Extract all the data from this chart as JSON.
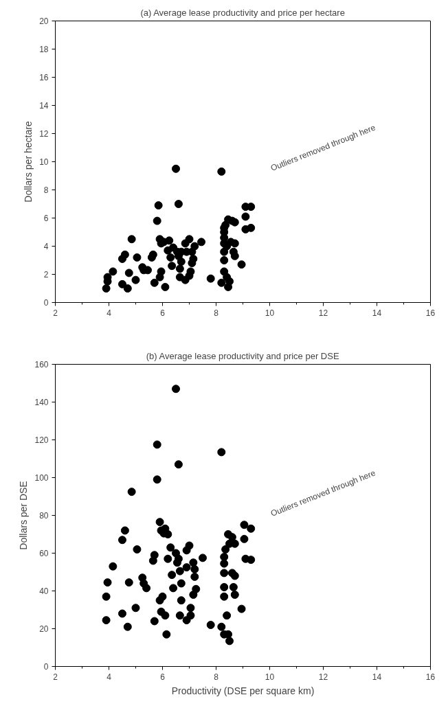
{
  "chart_data": [
    {
      "type": "scatter",
      "title": "(a) Average lease productivity and price per hectare",
      "ylabel": "Dollars per hectare",
      "annotations": [
        "Outliers removed through here"
      ],
      "series": [
        {
          "color": "#000000",
          "x": [
            3.9,
            3.95,
            3.95,
            4.15,
            4.5,
            4.5,
            4.6,
            4.7,
            4.75,
            4.85,
            5.0,
            5.05,
            5.25,
            5.3,
            5.45,
            5.6,
            5.65,
            5.7,
            5.8,
            5.85,
            5.9,
            5.9,
            5.95,
            5.95,
            6.05,
            6.1,
            6.2,
            6.25,
            6.3,
            6.35,
            6.4,
            6.5,
            6.55,
            6.6,
            6.6,
            6.65,
            6.65,
            6.7,
            6.7,
            6.85,
            6.85,
            6.9,
            7.0,
            7.0,
            7.05,
            7.1,
            7.1,
            7.15,
            7.2,
            7.45,
            7.8,
            8.2,
            8.2,
            8.3,
            8.3,
            8.3,
            8.3,
            8.3,
            8.3,
            8.3,
            8.35,
            8.4,
            8.4,
            8.45,
            8.45,
            8.5,
            8.55,
            8.6,
            8.65,
            8.7,
            8.7,
            8.7,
            8.95,
            9.1,
            9.1,
            9.1,
            9.3,
            9.3
          ],
          "values": [
            1.0,
            1.5,
            1.8,
            2.2,
            1.3,
            3.1,
            3.4,
            1.0,
            2.1,
            4.5,
            1.6,
            3.2,
            2.5,
            2.3,
            2.3,
            3.2,
            3.4,
            1.4,
            5.8,
            6.9,
            1.8,
            4.5,
            2.2,
            4.2,
            4.3,
            1.1,
            3.7,
            4.4,
            3.2,
            2.6,
            3.9,
            9.5,
            3.6,
            7.0,
            3.3,
            1.8,
            2.4,
            2.9,
            3.6,
            1.6,
            4.2,
            3.6,
            4.5,
            1.9,
            2.2,
            3.6,
            2.8,
            3.1,
            4.0,
            4.3,
            1.7,
            9.3,
            1.4,
            2.2,
            3.0,
            3.6,
            4.2,
            4.6,
            5.0,
            5.3,
            5.5,
            1.8,
            4.0,
            5.9,
            1.1,
            1.5,
            4.3,
            5.8,
            3.6,
            4.2,
            5.7,
            3.3,
            2.7,
            6.8,
            6.1,
            5.2,
            6.8,
            5.3
          ]
        }
      ],
      "xlim": [
        2,
        16
      ],
      "xticks": [
        2,
        4,
        6,
        8,
        10,
        12,
        14,
        16
      ],
      "ylim": [
        0,
        20
      ],
      "yticks": [
        0,
        2,
        4,
        6,
        8,
        10,
        12,
        14,
        16,
        18,
        20
      ],
      "grid": false,
      "marker": "circle"
    },
    {
      "type": "scatter",
      "title": "(b) Average lease productivity and price per DSE",
      "xlabel": "Productivity (DSE per square km)",
      "ylabel": "Dollars per DSE",
      "annotations": [
        "Outliers removed through here"
      ],
      "series": [
        {
          "color": "#000000",
          "x": [
            3.9,
            3.9,
            3.95,
            4.15,
            4.5,
            4.5,
            4.6,
            4.7,
            4.75,
            4.85,
            5.0,
            5.05,
            5.25,
            5.3,
            5.4,
            5.65,
            5.7,
            5.7,
            5.8,
            5.8,
            5.9,
            5.9,
            5.95,
            5.95,
            6.0,
            6.05,
            6.1,
            6.1,
            6.15,
            6.2,
            6.2,
            6.3,
            6.35,
            6.4,
            6.5,
            6.5,
            6.55,
            6.6,
            6.6,
            6.65,
            6.65,
            6.7,
            6.7,
            6.9,
            6.9,
            6.9,
            7.0,
            7.05,
            7.05,
            7.15,
            7.2,
            7.2,
            7.15,
            7.25,
            7.5,
            7.8,
            8.2,
            8.2,
            8.3,
            8.3,
            8.3,
            8.3,
            8.3,
            8.3,
            8.35,
            8.4,
            8.45,
            8.5,
            8.45,
            8.5,
            8.6,
            8.6,
            8.65,
            8.7,
            8.7,
            8.7,
            8.95,
            9.05,
            9.05,
            9.1,
            9.3,
            9.3
          ],
          "values": [
            24.5,
            37,
            44.5,
            53,
            28,
            67,
            72,
            21,
            44.5,
            92.5,
            31,
            62,
            47,
            44,
            41.5,
            56,
            59,
            24,
            117.5,
            99,
            76.5,
            35,
            72,
            29,
            37,
            70.5,
            73,
            27,
            17,
            57,
            70,
            63,
            48.5,
            41.5,
            147,
            60,
            55,
            107,
            57,
            50.5,
            27,
            44,
            35,
            52.5,
            24.5,
            61.5,
            64,
            31,
            27,
            55,
            51.5,
            47.5,
            38,
            41,
            57.5,
            22,
            113.5,
            21,
            17,
            37,
            42,
            49.5,
            54.5,
            58,
            62,
            27,
            17,
            13.5,
            70,
            65,
            68.5,
            49.5,
            42,
            48,
            65,
            38,
            30.5,
            75,
            67.5,
            57,
            73,
            56.5
          ]
        }
      ],
      "xlim": [
        2,
        16
      ],
      "xticks": [
        2,
        4,
        6,
        8,
        10,
        12,
        14,
        16
      ],
      "ylim": [
        0,
        160
      ],
      "yticks": [
        0,
        20,
        40,
        60,
        80,
        100,
        120,
        140,
        160
      ],
      "grid": false,
      "marker": "circle"
    }
  ]
}
